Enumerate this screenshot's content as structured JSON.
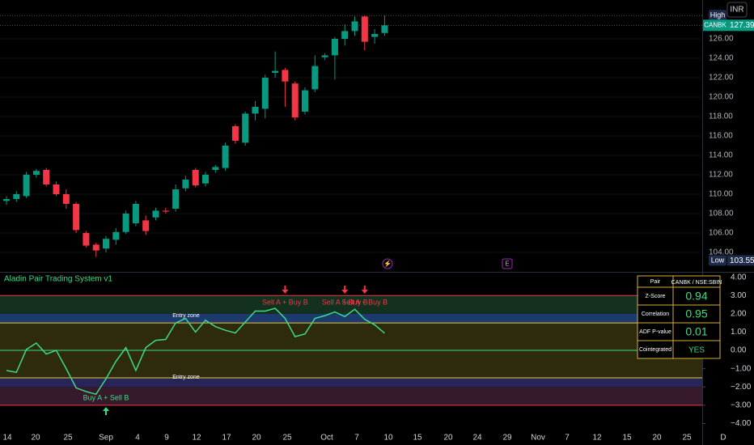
{
  "currency": "INR",
  "interval": "D",
  "time_axis": [
    "14",
    "20",
    "25",
    "Sep",
    "4",
    "9",
    "12",
    "17",
    "20",
    "25",
    "Oct",
    "7",
    "10",
    "15",
    "20",
    "24",
    "29",
    "Nov",
    "7",
    "12",
    "15",
    "20",
    "25"
  ],
  "chart_data": [
    {
      "type": "candlestick",
      "symbol": "CANBK",
      "up_color": "#089981",
      "down_color": "#f23645",
      "open": [
        109.3,
        109.5,
        109.8,
        112.0,
        112.5,
        111.0,
        110.0,
        109.0,
        106.0,
        104.8,
        104.4,
        105.3,
        106.1,
        107.0,
        107.3,
        107.6,
        108.3,
        108.5,
        110.6,
        112.5,
        111.1,
        112.5,
        112.7,
        117.0,
        115.3,
        118.3,
        118.8,
        122.5,
        122.8,
        121.4,
        118.5,
        120.8,
        124.1,
        124.3,
        126.0,
        126.8,
        128.3,
        126.2,
        126.6
      ],
      "high": [
        109.8,
        110.3,
        112.3,
        112.6,
        112.7,
        111.3,
        110.5,
        109.2,
        106.2,
        105.0,
        105.7,
        106.5,
        108.3,
        109.3,
        107.8,
        108.6,
        108.6,
        111.0,
        111.9,
        112.7,
        112.3,
        113.0,
        115.3,
        117.2,
        118.5,
        119.6,
        122.3,
        124.7,
        123.0,
        121.6,
        121.0,
        124.3,
        124.5,
        126.2,
        127.5,
        128.3,
        128.4,
        127.0,
        128.4
      ],
      "low": [
        108.9,
        109.2,
        109.6,
        111.7,
        110.8,
        109.8,
        108.5,
        106.0,
        104.5,
        103.55,
        104.0,
        104.8,
        105.9,
        106.7,
        105.8,
        107.3,
        108.0,
        108.2,
        110.3,
        110.7,
        110.8,
        112.2,
        112.4,
        115.2,
        115.0,
        117.6,
        117.8,
        122.0,
        119.0,
        117.6,
        118.2,
        120.5,
        123.8,
        121.8,
        125.3,
        126.3,
        124.8,
        125.5,
        126.3
      ],
      "close": [
        109.5,
        110.0,
        112.0,
        112.4,
        111.0,
        110.0,
        109.0,
        106.3,
        104.7,
        104.2,
        105.4,
        106.1,
        108.0,
        109.0,
        106.2,
        108.3,
        108.2,
        110.5,
        111.5,
        110.9,
        112.0,
        112.8,
        115.0,
        115.5,
        118.3,
        119.0,
        122.0,
        122.7,
        121.6,
        117.9,
        120.7,
        123.2,
        124.3,
        126.0,
        126.8,
        127.8,
        125.7,
        126.5,
        127.39
      ],
      "ylim": [
        102.08,
        130
      ],
      "yticks": [
        {
          "value": 104,
          "label": "104.00"
        },
        {
          "value": 106,
          "label": "106.00"
        },
        {
          "value": 108,
          "label": "108.00"
        },
        {
          "value": 110,
          "label": "110.00"
        },
        {
          "value": 112,
          "label": "112.00"
        },
        {
          "value": 114,
          "label": "114.00"
        },
        {
          "value": 116,
          "label": "116.00"
        },
        {
          "value": 118,
          "label": "118.00"
        },
        {
          "value": 120,
          "label": "120.00"
        },
        {
          "value": 122,
          "label": "122.00"
        },
        {
          "value": 124,
          "label": "124.00"
        },
        {
          "value": 126,
          "label": "126.00"
        }
      ],
      "high_marker": {
        "label": "High",
        "value": 128.4
      },
      "low_marker": {
        "label": "Low",
        "value": 103.55
      },
      "last_price": 127.39
    },
    {
      "type": "line",
      "title": "Aladin Pair Trading System v1",
      "series": [
        {
          "name": "Z-Score",
          "color": "#3ddc84",
          "values": [
            -1.1,
            -1.2,
            0.05,
            0.4,
            -0.2,
            0.0,
            -1.0,
            -2.05,
            -2.25,
            -2.4,
            -1.55,
            -0.6,
            0.15,
            -1.1,
            0.15,
            0.55,
            0.6,
            1.5,
            1.75,
            1.0,
            1.65,
            1.3,
            1.1,
            0.95,
            1.55,
            2.15,
            2.15,
            2.3,
            1.75,
            0.75,
            0.9,
            1.75,
            1.9,
            2.1,
            1.85,
            2.25,
            1.7,
            1.4,
            0.94
          ]
        }
      ],
      "ylim": [
        -4.51,
        4.25
      ],
      "yticks": [
        {
          "value": 4,
          "label": "4.00"
        },
        {
          "value": 3,
          "label": "3.00"
        },
        {
          "value": 2,
          "label": "2.00"
        },
        {
          "value": 1,
          "label": "1.00"
        },
        {
          "value": 0,
          "label": "0.00"
        },
        {
          "value": -1,
          "label": "−1.00"
        },
        {
          "value": -2,
          "label": "−2.00"
        },
        {
          "value": -3,
          "label": "−3.00"
        },
        {
          "value": -4,
          "label": "−4.00"
        }
      ],
      "bands": [
        {
          "from": 2,
          "to": 3,
          "color": "#14301f"
        },
        {
          "from": 1.5,
          "to": 2,
          "color": "#1d3a6e"
        },
        {
          "from": -1.5,
          "to": 1.5,
          "color": "#2e2a0c"
        },
        {
          "from": -2,
          "to": -1.5,
          "color": "#272457"
        },
        {
          "from": -3,
          "to": -2,
          "color": "#361a2c"
        }
      ],
      "levels": [
        {
          "value": 3,
          "color": "#f23645"
        },
        {
          "value": 1.5,
          "color": "#e6c84a"
        },
        {
          "value": 0,
          "color": "#3ddc84"
        },
        {
          "value": -1.5,
          "color": "#e6c84a"
        },
        {
          "value": -3,
          "color": "#f23645"
        }
      ],
      "entry_labels": [
        {
          "text": "Entry zone",
          "value": 1.5
        },
        {
          "text": "Entry zone",
          "value": -1.5
        }
      ],
      "signals": [
        {
          "text": "Sell A + Buy B",
          "at": 28,
          "color": "#f23645",
          "side": "above"
        },
        {
          "text": "Sell A + Buy B",
          "at": 34,
          "color": "#f23645",
          "side": "above"
        },
        {
          "text": "Sell A + Buy B",
          "at": 36,
          "color": "#f23645",
          "side": "above"
        },
        {
          "text": "Buy A + Sell B",
          "at": 10,
          "color": "#3ddc84",
          "side": "below"
        }
      ],
      "table": {
        "rows": [
          [
            "Pair",
            "CANBK / NSE:SBIN"
          ],
          [
            "Z-Score",
            0.94
          ],
          [
            "Correlation",
            0.95
          ],
          [
            "ADF P-value",
            0.01
          ],
          [
            "Cointegrated",
            "YES"
          ]
        ]
      }
    }
  ]
}
